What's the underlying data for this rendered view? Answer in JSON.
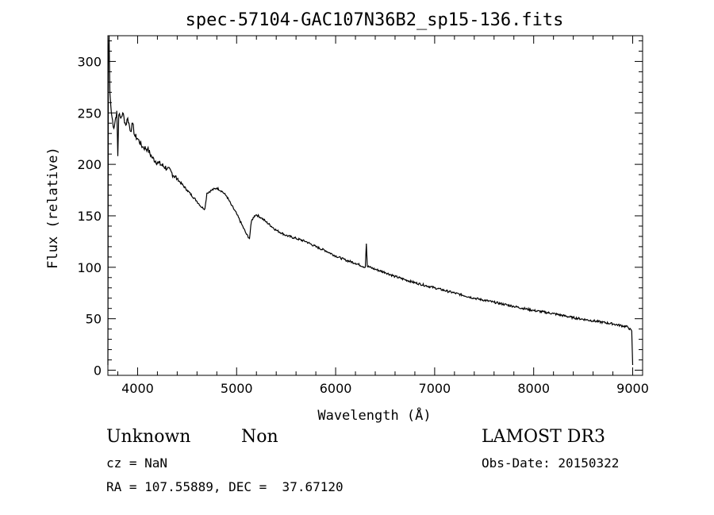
{
  "chart_data": {
    "type": "line",
    "title": "spec-57104-GAC107N36B2_sp15-136.fits",
    "xlabel": "Wavelength (Å)",
    "ylabel": "Flux (relative)",
    "xlim": [
      3700,
      9100
    ],
    "ylim": [
      -5,
      325
    ],
    "xticks": [
      4000,
      5000,
      6000,
      7000,
      8000,
      9000
    ],
    "yticks": [
      0,
      50,
      100,
      150,
      200,
      250,
      300
    ],
    "grid": false,
    "series": [
      {
        "x": [
          3700,
          3705,
          3712,
          3720,
          3735,
          3760,
          3790,
          3800,
          3810,
          3830,
          3850,
          3880,
          3900,
          3930,
          3950,
          3970,
          4000,
          4050,
          4100,
          4150,
          4200,
          4300,
          4400,
          4500,
          4600,
          4650,
          4680,
          4700,
          4750,
          4800,
          4850,
          4900,
          4950,
          5000,
          5050,
          5100,
          5130,
          5150,
          5180,
          5200,
          5250,
          5300,
          5400,
          5500,
          5600,
          5700,
          5800,
          5900,
          6000,
          6100,
          6200,
          6300,
          6310,
          6320,
          6400,
          6500,
          6600,
          6700,
          6800,
          7000,
          7200,
          7400,
          7600,
          7800,
          8000,
          8200,
          8400,
          8600,
          8800,
          8950,
          8990,
          9000
        ],
        "y": [
          5,
          300,
          325,
          270,
          250,
          235,
          252,
          208,
          248,
          245,
          250,
          238,
          245,
          232,
          240,
          228,
          225,
          217,
          215,
          206,
          202,
          196,
          186,
          175,
          164,
          158,
          157,
          172,
          175,
          177,
          174,
          169,
          160,
          152,
          142,
          132,
          128,
          145,
          150,
          151,
          148,
          144,
          136,
          131,
          128,
          125,
          120,
          116,
          111,
          107,
          104,
          100,
          123,
          101,
          98,
          95,
          91,
          88,
          85,
          80,
          75,
          70,
          66,
          62,
          58,
          55,
          51,
          48,
          45,
          42,
          38,
          5
        ]
      }
    ]
  },
  "footer": {
    "class_label": "Unknown",
    "subclass_label": "Non",
    "cz_text": "cz = NaN",
    "radec_text": "RA = 107.55889, DEC =  37.67120",
    "survey_label": "LAMOST DR3",
    "obs_date_text": "Obs-Date: 20150322"
  }
}
